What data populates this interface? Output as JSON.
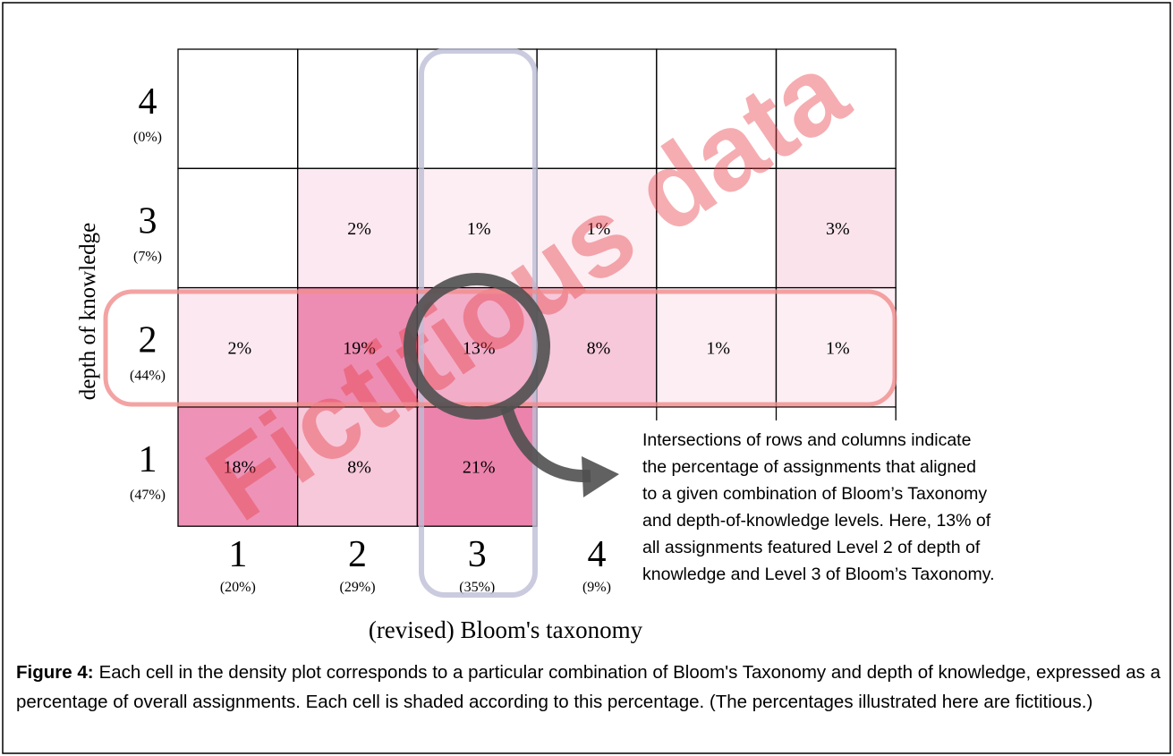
{
  "chart_data": {
    "type": "heatmap",
    "color": "#e8699b",
    "watermark": "Fictitious data",
    "x_label": "(revised) Bloom's taxonomy",
    "y_label": "depth of knowledge",
    "x_categories": [
      "1",
      "2",
      "3",
      "4",
      null,
      null
    ],
    "x_shares": [
      20,
      29,
      35,
      9,
      null,
      null
    ],
    "x_share_labels": [
      "(20%)",
      "(29%)",
      "(35%)",
      "(9%)",
      null,
      null
    ],
    "y_categories": [
      "4",
      "3",
      "2",
      "1"
    ],
    "y_shares": [
      0,
      7,
      44,
      47
    ],
    "y_share_labels": [
      "(0%)",
      "(7%)",
      "(44%)",
      "(47%)"
    ],
    "values": [
      [
        null,
        null,
        null,
        null,
        null,
        null
      ],
      [
        null,
        2,
        1,
        1,
        null,
        3
      ],
      [
        2,
        19,
        13,
        8,
        1,
        1
      ],
      [
        18,
        8,
        21,
        null,
        null,
        null
      ]
    ],
    "value_labels": [
      [
        null,
        null,
        null,
        null,
        null,
        null
      ],
      [
        null,
        "2%",
        "1%",
        "1%",
        null,
        "3%"
      ],
      [
        "2%",
        "19%",
        "13%",
        "8%",
        "1%",
        "1%"
      ],
      [
        "18%",
        "8%",
        "21%",
        null,
        null,
        null
      ]
    ],
    "annotation": [
      "Intersections of rows and columns indicate",
      "the percentage of assignments that aligned",
      "to a given combination of Bloom’s Taxonomy",
      "and depth-of-knowledge levels. Here, 13% of",
      "all assignments featured Level 2 of depth of",
      "knowledge and Level 3 of Bloom’s Taxonomy."
    ]
  },
  "caption": {
    "label": "Figure 4:",
    "text": "Each cell in the density plot corresponds to a particular combination of Bloom's Taxonomy and depth of knowledge, expressed as a percentage of overall assignments. Each cell is shaded according to this percentage. (The percentages illustrated here are fictitious.)"
  }
}
